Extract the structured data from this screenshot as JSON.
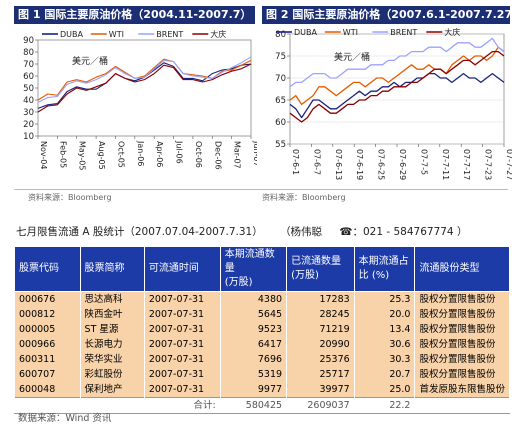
{
  "figures": [
    {
      "title": "图 1  国际主要原油价格（2004.11-2007.7）",
      "source": "资料来源：Bloomberg"
    },
    {
      "title": "图 2  国际主要原油价格（2007.6.1-2007.7.27）",
      "source": "资料来源：Bloomberg"
    }
  ],
  "chart_data": [
    {
      "type": "line",
      "title": "图 1  国际主要原油价格（2004.11-2007.7）",
      "unit_label": "美元／桶",
      "ylim": [
        10,
        90
      ],
      "yticks": [
        10,
        20,
        30,
        40,
        50,
        60,
        70,
        80,
        90
      ],
      "xticks": [
        "Nov-04",
        "Feb-05",
        "May-05",
        "Aug-05",
        "Oct-05",
        "Jan-06",
        "Apr-06",
        "Jul-06",
        "Oct-06",
        "Dec-06",
        "Mar-07",
        "Jun-07"
      ],
      "legend": "top",
      "series": [
        {
          "name": "DUBA",
          "color": "#1a237e",
          "values": [
            33,
            36,
            37,
            47,
            51,
            49,
            49,
            54,
            62,
            58,
            56,
            59,
            65,
            71,
            68,
            58,
            58,
            56,
            62,
            65,
            66,
            69,
            70
          ]
        },
        {
          "name": "WTI",
          "color": "#e65c00",
          "values": [
            40,
            45,
            44,
            55,
            57,
            55,
            59,
            62,
            68,
            63,
            58,
            60,
            67,
            74,
            72,
            62,
            61,
            60,
            58,
            64,
            65,
            69,
            73
          ]
        },
        {
          "name": "BRENT",
          "color": "#9aa3ff",
          "values": [
            38,
            42,
            43,
            53,
            56,
            54,
            57,
            61,
            67,
            62,
            58,
            59,
            66,
            73,
            72,
            62,
            60,
            59,
            58,
            63,
            67,
            71,
            76
          ]
        },
        {
          "name": "大庆",
          "color": "#8b0000",
          "values": [
            30,
            35,
            36,
            45,
            50,
            48,
            51,
            54,
            62,
            58,
            55,
            57,
            62,
            69,
            67,
            57,
            57,
            55,
            57,
            61,
            64,
            66,
            70
          ]
        }
      ]
    },
    {
      "type": "line",
      "title": "图 2  国际主要原油价格（2007.6.1-2007.7.27）",
      "unit_label": "美元／桶",
      "ylim": [
        55,
        80
      ],
      "yticks": [
        55,
        60,
        65,
        70,
        75,
        80
      ],
      "xticks": [
        "07-6-1",
        "07-6-7",
        "07-6-13",
        "07-6-19",
        "07-6-25",
        "07-6-29",
        "07-7-5",
        "07-7-11",
        "07-7-17",
        "07-7-23",
        "07-7-27"
      ],
      "legend": "top",
      "series": [
        {
          "name": "DUBA",
          "color": "#1a237e",
          "values": [
            64,
            63,
            61,
            63,
            65,
            65,
            64,
            63,
            63,
            64,
            65,
            66,
            67,
            66,
            67,
            67,
            68,
            68,
            69,
            68,
            69,
            69,
            70,
            70,
            71,
            71,
            70,
            70,
            69,
            70,
            71,
            70,
            70,
            69,
            70,
            71,
            70,
            69
          ]
        },
        {
          "name": "WTI",
          "color": "#e65c00",
          "values": [
            65,
            66,
            64,
            65,
            66,
            68,
            68,
            67,
            66,
            67,
            68,
            69,
            69,
            68,
            69,
            70,
            70,
            69,
            70,
            71,
            72,
            73,
            72,
            72,
            73,
            72,
            72,
            71,
            73,
            74,
            75,
            74,
            75,
            75,
            74,
            75,
            77,
            76
          ]
        },
        {
          "name": "BRENT",
          "color": "#9aa3ff",
          "values": [
            68,
            69,
            69,
            70,
            71,
            71,
            71,
            70,
            70,
            71,
            72,
            72,
            72,
            72,
            73,
            73,
            73,
            74,
            74,
            75,
            75,
            76,
            76,
            76,
            77,
            77,
            77,
            76,
            77,
            78,
            78,
            78,
            77,
            77,
            78,
            79,
            77,
            76
          ]
        },
        {
          "name": "大庆",
          "color": "#8b0000",
          "values": [
            62,
            61,
            60,
            61,
            63,
            64,
            63,
            62,
            62,
            63,
            64,
            64,
            65,
            65,
            66,
            66,
            67,
            67,
            68,
            68,
            68,
            69,
            69,
            70,
            71,
            72,
            72,
            71,
            72,
            73,
            74,
            74,
            73,
            74,
            75,
            76,
            76,
            75
          ]
        }
      ]
    },
    {
      "type": "table",
      "title": "七月限售流通 A 股统计（2007.07.04-2007.7.31）",
      "author": "（杨伟聪",
      "phone": "☎：021 - 584767774 ）",
      "columns": [
        "股票代码",
        "股票简称",
        "可流通时间",
        "本期流通数量（万股）",
        "已流通数量（万股）",
        "本期流通占比（%）",
        "流通股份类型"
      ],
      "rows": [
        [
          "000676",
          "思达高科",
          "2007-07-31",
          "4380",
          "17283",
          "25.3",
          "股权分置限售股份"
        ],
        [
          "000812",
          "陕西金叶",
          "2007-07-31",
          "5645",
          "28245",
          "20.0",
          "股权分置限售股份"
        ],
        [
          "000005",
          "ST 星源",
          "2007-07-31",
          "9523",
          "71219",
          "13.4",
          "股权分置限售股份"
        ],
        [
          "000966",
          "长源电力",
          "2007-07-31",
          "6417",
          "20990",
          "30.6",
          "股权分置限售股份"
        ],
        [
          "600311",
          "荣华实业",
          "2007-07-31",
          "7696",
          "25376",
          "30.3",
          "股权分置限售股份"
        ],
        [
          "600707",
          "彩虹股份",
          "2007-07-31",
          "5319",
          "25717",
          "20.7",
          "股权分置限售股份"
        ],
        [
          "600048",
          "保利地产",
          "2007-07-31",
          "9977",
          "39977",
          "25.0",
          "首发原股东限售股份"
        ]
      ],
      "total": {
        "label": "合计:",
        "current": "580425",
        "circulated": "2609037",
        "ratio": "22.2"
      }
    }
  ],
  "table_header": {
    "code": "股票代码",
    "name": "股票简称",
    "time": "可流通时间",
    "current_1": "本期流通数量",
    "current_2": "(万股)",
    "circulated_1": "已流通数量",
    "circulated_2": "(万股)",
    "ratio_1": "本期流通占",
    "ratio_2": "比 (%)",
    "type": "流通股份类型"
  },
  "footer_source": "数据来源：Wind 资讯"
}
